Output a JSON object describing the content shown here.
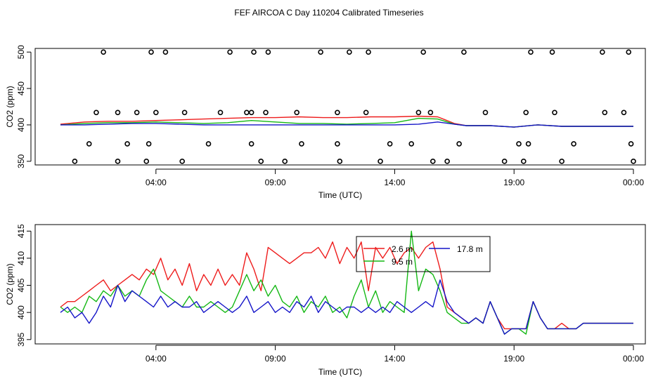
{
  "title": "FEF AIRCOA C  Day 110204  Calibrated Timeseries",
  "colors": {
    "red": "#ee1c1c",
    "green": "#14b814",
    "blue": "#1414c8",
    "axis": "#000000"
  },
  "chart_data": [
    {
      "type": "scatter",
      "xlabel": "Time (UTC)",
      "ylabel": "CO2 (ppm)",
      "xlim": [
        0,
        24.5
      ],
      "ylim": [
        345,
        505
      ],
      "x_ticks": [
        4,
        9,
        14,
        19,
        24
      ],
      "x_tick_labels": [
        "04:00",
        "09:00",
        "14:00",
        "19:00",
        "00:00"
      ],
      "y_ticks": [
        350,
        400,
        450,
        500
      ],
      "y_tick_labels": [
        "350",
        "400",
        "450",
        "500"
      ],
      "markers": {
        "x": [
          1.5,
          2.4,
          3.2,
          4.0,
          5.2,
          6.7,
          7.8,
          8.0,
          8.6,
          9.9,
          11.6,
          12.8,
          15.0,
          15.5,
          17.8,
          19.5,
          20.7,
          22.8,
          23.6,
          0.6,
          1.2,
          1.8,
          2.4,
          2.8,
          3.6,
          3.7,
          3.8,
          4.4,
          5.1,
          6.2,
          7.1,
          8.0,
          8.1,
          8.4,
          8.7,
          9.4,
          10.1,
          10.9,
          11.6,
          11.7,
          12.1,
          12.9,
          13.4,
          13.8,
          14.7,
          15.2,
          15.6,
          16.2,
          16.7,
          16.9,
          18.6,
          19.2,
          19.4,
          19.6,
          19.7,
          20.6,
          21.0,
          21.5,
          22.7,
          23.8,
          23.9,
          24.0
        ],
        "y": [
          417,
          417,
          417,
          417,
          417,
          417,
          417,
          417,
          417,
          417,
          417,
          417,
          417,
          417,
          417,
          417,
          417,
          417,
          417,
          350,
          374,
          500,
          350,
          374,
          350,
          374,
          500,
          500,
          350,
          374,
          500,
          374,
          500,
          350,
          500,
          350,
          374,
          500,
          374,
          350,
          500,
          500,
          350,
          374,
          374,
          500,
          350,
          350,
          374,
          500,
          350,
          374,
          350,
          374,
          500,
          500,
          350,
          374,
          500,
          500,
          374,
          350
        ]
      },
      "series": [
        {
          "name": "2.6 m",
          "color": "red",
          "x": [
            0,
            1,
            2,
            3,
            4,
            5,
            6,
            7,
            8,
            9,
            10,
            11,
            12,
            13,
            14,
            15,
            15.8,
            16.5,
            17,
            18,
            19,
            20,
            21,
            22,
            23,
            24
          ],
          "values": [
            401,
            404,
            405,
            405,
            406,
            407,
            408,
            409,
            410,
            410,
            411,
            410,
            410,
            411,
            411,
            412,
            411,
            402,
            399,
            399,
            397,
            400,
            398,
            398,
            398,
            398
          ]
        },
        {
          "name": "9.5 m",
          "color": "green",
          "x": [
            0,
            1,
            2,
            3,
            4,
            5,
            6,
            7,
            8,
            9,
            10,
            11,
            12,
            13,
            14,
            15,
            15.8,
            16.5,
            17,
            18,
            19,
            20,
            21,
            22,
            23,
            24
          ],
          "values": [
            400,
            402,
            403,
            403,
            404,
            403,
            402,
            403,
            406,
            404,
            402,
            402,
            401,
            402,
            403,
            409,
            408,
            401,
            399,
            399,
            397,
            400,
            398,
            398,
            398,
            398
          ]
        },
        {
          "name": "17.8 m",
          "color": "blue",
          "x": [
            0,
            1,
            2,
            3,
            4,
            5,
            6,
            7,
            8,
            9,
            10,
            11,
            12,
            13,
            14,
            15,
            15.8,
            16.5,
            17,
            18,
            19,
            20,
            21,
            22,
            23,
            24
          ],
          "values": [
            400,
            400,
            401,
            402,
            402,
            401,
            400,
            400,
            400,
            400,
            400,
            400,
            400,
            400,
            400,
            401,
            404,
            401,
            399,
            399,
            397,
            400,
            398,
            398,
            398,
            398
          ]
        }
      ]
    },
    {
      "type": "line",
      "xlabel": "Time (UTC)",
      "ylabel": "CO2 (ppm)",
      "xlim": [
        0,
        24.5
      ],
      "ylim": [
        394.2,
        416.2
      ],
      "x_ticks": [
        4,
        9,
        14,
        19,
        24
      ],
      "x_tick_labels": [
        "04:00",
        "09:00",
        "14:00",
        "19:00",
        "00:00"
      ],
      "y_ticks": [
        395,
        400,
        405,
        410,
        415
      ],
      "y_tick_labels": [
        "395",
        "400",
        "405",
        "410",
        "415"
      ],
      "legend": {
        "position": "top-right",
        "labels": [
          "2.6 m",
          "9.5 m",
          "17.8 m"
        ]
      },
      "series": [
        {
          "name": "2.6 m",
          "color": "red",
          "x": [
            0,
            0.3,
            0.6,
            0.9,
            1.2,
            1.5,
            1.8,
            2.1,
            2.4,
            2.7,
            3.0,
            3.3,
            3.6,
            3.9,
            4.2,
            4.5,
            4.8,
            5.1,
            5.4,
            5.7,
            6.0,
            6.3,
            6.6,
            6.9,
            7.2,
            7.5,
            7.8,
            8.1,
            8.4,
            8.7,
            9.0,
            9.3,
            9.6,
            9.9,
            10.2,
            10.5,
            10.8,
            11.1,
            11.4,
            11.7,
            12.0,
            12.3,
            12.6,
            12.9,
            13.2,
            13.5,
            13.8,
            14.1,
            14.4,
            14.7,
            15.0,
            15.3,
            15.6,
            15.9,
            16.2,
            16.5,
            16.8,
            17.1,
            17.4,
            17.7,
            18.0,
            18.3,
            18.6,
            18.9,
            19.2,
            19.5,
            19.8,
            20.1,
            20.4,
            20.7,
            21.0,
            21.3,
            21.6,
            21.9,
            22.2,
            22.5,
            22.8,
            23.1,
            23.4,
            23.7,
            24.0
          ],
          "values": [
            401,
            402,
            402,
            403,
            404,
            405,
            406,
            404,
            405,
            406,
            407,
            406,
            408,
            407,
            410,
            406,
            408,
            405,
            409,
            404,
            407,
            405,
            408,
            405,
            407,
            405,
            411,
            408,
            404,
            412,
            411,
            410,
            409,
            410,
            411,
            411,
            412,
            410,
            413,
            409,
            412,
            410,
            413,
            404,
            412,
            410,
            412,
            409,
            411,
            412,
            410,
            412,
            413,
            408,
            401,
            400,
            399,
            398,
            399,
            398,
            402,
            399,
            397,
            397,
            397,
            397,
            402,
            399,
            397,
            397,
            398,
            397,
            397,
            398,
            398,
            398,
            398,
            398,
            398,
            398,
            398
          ]
        },
        {
          "name": "9.5 m",
          "color": "green",
          "x": [
            0,
            0.3,
            0.6,
            0.9,
            1.2,
            1.5,
            1.8,
            2.1,
            2.4,
            2.7,
            3.0,
            3.3,
            3.6,
            3.9,
            4.2,
            4.5,
            4.8,
            5.1,
            5.4,
            5.7,
            6.0,
            6.3,
            6.6,
            6.9,
            7.2,
            7.5,
            7.8,
            8.1,
            8.4,
            8.7,
            9.0,
            9.3,
            9.6,
            9.9,
            10.2,
            10.5,
            10.8,
            11.1,
            11.4,
            11.7,
            12.0,
            12.3,
            12.6,
            12.9,
            13.2,
            13.5,
            13.8,
            14.1,
            14.4,
            14.7,
            15.0,
            15.3,
            15.6,
            15.9,
            16.2,
            16.5,
            16.8,
            17.1,
            17.4,
            17.7,
            18.0,
            18.3,
            18.6,
            18.9,
            19.2,
            19.5,
            19.8,
            20.1,
            20.4,
            20.7,
            21.0,
            21.3,
            21.6,
            21.9,
            22.2,
            22.5,
            22.8,
            23.1,
            23.4,
            23.7,
            24.0
          ],
          "values": [
            401,
            400,
            401,
            400,
            403,
            402,
            404,
            403,
            405,
            403,
            404,
            403,
            406,
            408,
            404,
            403,
            402,
            401,
            403,
            401,
            401,
            402,
            401,
            400,
            401,
            404,
            407,
            404,
            406,
            403,
            405,
            402,
            401,
            403,
            400,
            402,
            401,
            403,
            400,
            401,
            399,
            403,
            406,
            401,
            404,
            400,
            402,
            401,
            400,
            415,
            404,
            408,
            407,
            404,
            400,
            399,
            398,
            398,
            399,
            398,
            402,
            399,
            396,
            397,
            397,
            396,
            402,
            399,
            397,
            397,
            397,
            397,
            397,
            398,
            398,
            398,
            398,
            398,
            398,
            398,
            398
          ]
        },
        {
          "name": "17.8 m",
          "color": "blue",
          "x": [
            0,
            0.3,
            0.6,
            0.9,
            1.2,
            1.5,
            1.8,
            2.1,
            2.4,
            2.7,
            3.0,
            3.3,
            3.6,
            3.9,
            4.2,
            4.5,
            4.8,
            5.1,
            5.4,
            5.7,
            6.0,
            6.3,
            6.6,
            6.9,
            7.2,
            7.5,
            7.8,
            8.1,
            8.4,
            8.7,
            9.0,
            9.3,
            9.6,
            9.9,
            10.2,
            10.5,
            10.8,
            11.1,
            11.4,
            11.7,
            12.0,
            12.3,
            12.6,
            12.9,
            13.2,
            13.5,
            13.8,
            14.1,
            14.4,
            14.7,
            15.0,
            15.3,
            15.6,
            15.9,
            16.2,
            16.5,
            16.8,
            17.1,
            17.4,
            17.7,
            18.0,
            18.3,
            18.6,
            18.9,
            19.2,
            19.5,
            19.8,
            20.1,
            20.4,
            20.7,
            21.0,
            21.3,
            21.6,
            21.9,
            22.2,
            22.5,
            22.8,
            23.1,
            23.4,
            23.7,
            24.0
          ],
          "values": [
            400,
            401,
            399,
            400,
            398,
            400,
            403,
            401,
            405,
            402,
            404,
            403,
            402,
            401,
            403,
            401,
            402,
            401,
            401,
            402,
            400,
            401,
            402,
            401,
            400,
            401,
            403,
            400,
            401,
            402,
            400,
            401,
            400,
            402,
            401,
            403,
            400,
            402,
            401,
            400,
            401,
            401,
            400,
            401,
            400,
            401,
            400,
            402,
            401,
            400,
            401,
            402,
            401,
            406,
            402,
            400,
            399,
            398,
            399,
            398,
            402,
            399,
            396,
            397,
            397,
            397,
            402,
            399,
            397,
            397,
            397,
            397,
            397,
            398,
            398,
            398,
            398,
            398,
            398,
            398,
            398
          ]
        }
      ]
    }
  ]
}
